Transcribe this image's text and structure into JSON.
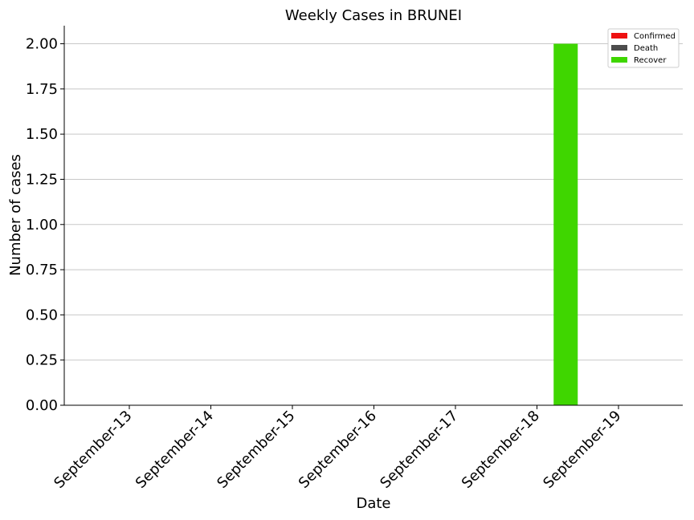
{
  "chart_data": {
    "type": "bar",
    "title": "Weekly Cases in BRUNEI",
    "xlabel": "Date",
    "ylabel": "Number of cases",
    "categories": [
      "September-13",
      "September-14",
      "September-15",
      "September-16",
      "September-17",
      "September-18",
      "September-19"
    ],
    "series": [
      {
        "name": "Confirmed",
        "color": "#ee1111",
        "values": [
          0,
          0,
          0,
          0,
          0,
          0,
          0
        ]
      },
      {
        "name": "Death",
        "color": "#4d4d4d",
        "values": [
          0,
          0,
          0,
          0,
          0,
          0,
          0
        ]
      },
      {
        "name": "Recover",
        "color": "#3fd600",
        "values": [
          0,
          0,
          0,
          0,
          0,
          2,
          0
        ]
      }
    ],
    "ylim": [
      0,
      2.1
    ],
    "yticks": [
      "0.00",
      "0.25",
      "0.50",
      "0.75",
      "1.00",
      "1.25",
      "1.50",
      "1.75",
      "2.00"
    ],
    "grid": "horizontal",
    "legend_position": "top-right"
  }
}
